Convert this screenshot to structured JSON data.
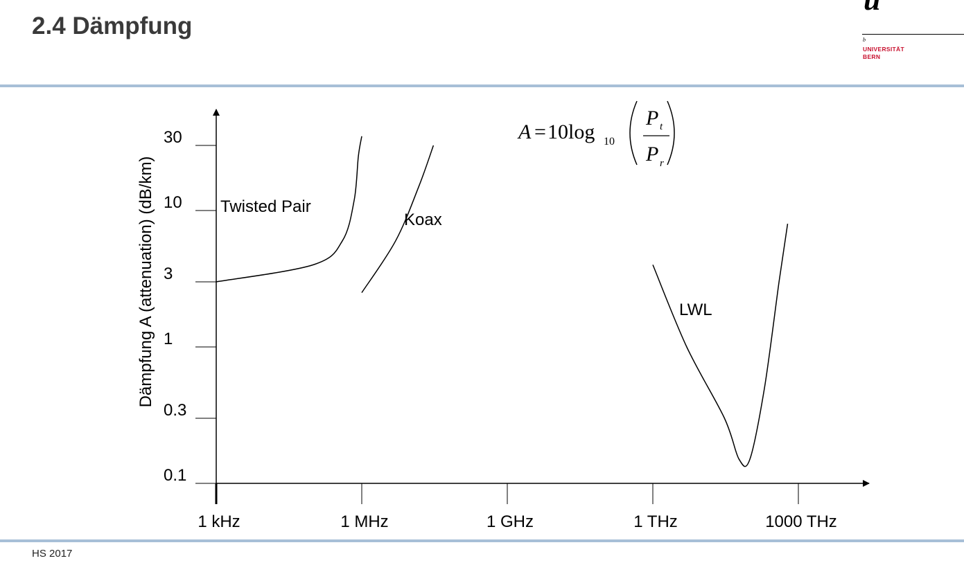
{
  "slide": {
    "title": "2.4 Dämpfung",
    "footer": "HS 2017",
    "logo": {
      "mark": "u",
      "sup": "b",
      "line1": "UNIVERSITÄT",
      "line2": "BERN"
    }
  },
  "colors": {
    "accent_rule": "#a7bfd7",
    "title": "#3a3a3a",
    "logo_red": "#c8102e"
  },
  "chart_data": {
    "type": "line",
    "title": "",
    "xlabel": "",
    "ylabel": "Dämpfung A (attenuation) (dB/km)",
    "x_scale": "log",
    "y_scale": "log",
    "x_ticks": [
      "1 kHz",
      "1 MHz",
      "1 GHz",
      "1 THz",
      "1000 THz"
    ],
    "y_ticks": [
      "0.1",
      "0.3",
      "1",
      "3",
      "10",
      "30"
    ],
    "ylim": [
      0.1,
      30
    ],
    "formula": {
      "lhs": "A",
      "eq": "=",
      "coef": "10",
      "fn": "log",
      "base": "10",
      "num": "P",
      "num_sub": "t",
      "den": "P",
      "den_sub": "r"
    },
    "series": [
      {
        "name": "Twisted Pair",
        "points": [
          [
            1000,
            3
          ],
          [
            100000,
            4
          ],
          [
            400000,
            6
          ],
          [
            700000,
            12
          ],
          [
            850000,
            25
          ],
          [
            1000000,
            35
          ]
        ]
      },
      {
        "name": "Koax",
        "points": [
          [
            1000000,
            2.5
          ],
          [
            5000000,
            6
          ],
          [
            15000000,
            15
          ],
          [
            30000000,
            30
          ]
        ]
      },
      {
        "name": "LWL",
        "points": [
          [
            1000000000000,
            4
          ],
          [
            5000000000000,
            1
          ],
          [
            30000000000000,
            0.3
          ],
          [
            60000000000000,
            0.15
          ],
          [
            100000000000000,
            0.15
          ],
          [
            200000000000000,
            0.5
          ],
          [
            400000000000000,
            3
          ],
          [
            600000000000000,
            8
          ]
        ]
      }
    ]
  }
}
